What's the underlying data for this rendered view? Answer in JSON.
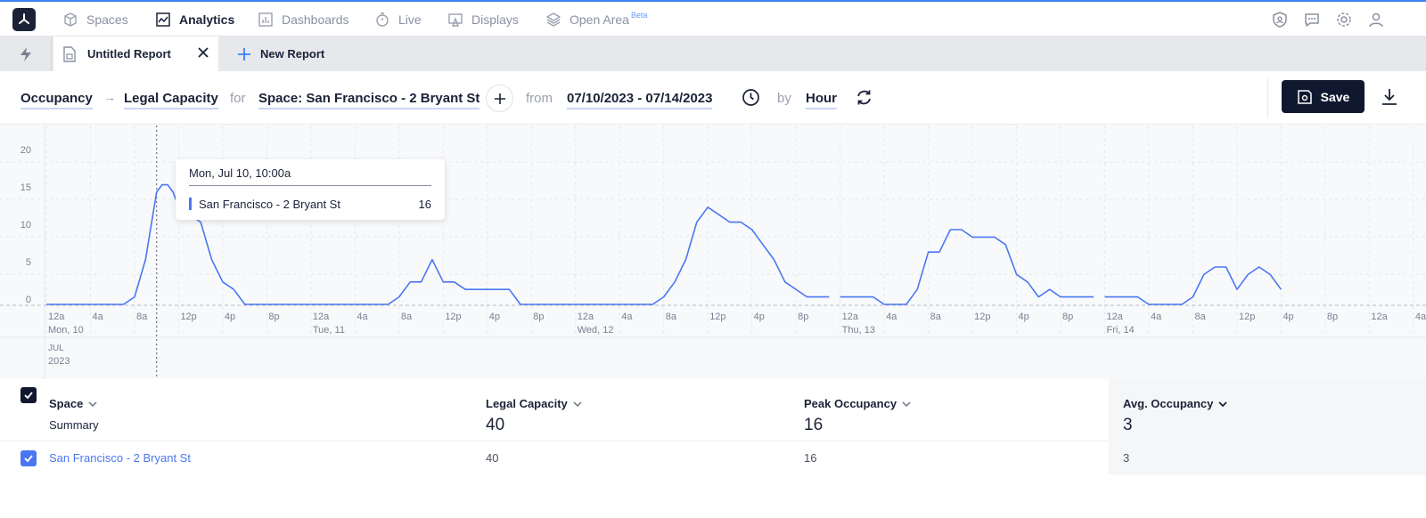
{
  "nav": {
    "items": [
      {
        "label": "Spaces",
        "icon": "cube-icon"
      },
      {
        "label": "Analytics",
        "icon": "chart-line-icon"
      },
      {
        "label": "Dashboards",
        "icon": "bar-chart-icon"
      },
      {
        "label": "Live",
        "icon": "stopwatch-icon"
      },
      {
        "label": "Displays",
        "icon": "display-icon"
      },
      {
        "label": "Open Area",
        "icon": "layers-icon"
      }
    ],
    "beta_label": "Beta",
    "active": "Analytics"
  },
  "tabs": {
    "current": "Untitled Report",
    "new_label": "New Report"
  },
  "query": {
    "metric": "Occupancy",
    "measure": "Legal Capacity",
    "for_label": "for",
    "space": "Space: San Francisco - 2 Bryant St",
    "from_label": "from",
    "date_range": "07/10/2023 - 07/14/2023",
    "by_label": "by",
    "interval": "Hour",
    "save_label": "Save"
  },
  "tooltip": {
    "title": "Mon, Jul 10, 10:00a",
    "series": "San Francisco - 2 Bryant St",
    "value": "16"
  },
  "chart_data": {
    "type": "line",
    "y_ticks": [
      "0",
      "5",
      "10",
      "15",
      "20"
    ],
    "ylim": [
      0,
      20
    ],
    "x_ticks": [
      "12a",
      "4a",
      "8a",
      "12p",
      "4p",
      "8p"
    ],
    "days": [
      "Mon, 10",
      "Tue, 11",
      "Wed, 12",
      "Thu, 13",
      "Fri, 14"
    ],
    "month_label": "JUL",
    "year_label": "2023",
    "grid": true,
    "series": [
      {
        "name": "San Francisco - 2 Bryant St",
        "color": "#4a77f0",
        "segments": [
          [
            [
              0,
              0
            ],
            [
              7,
              0
            ],
            [
              8,
              1
            ],
            [
              9,
              6
            ],
            [
              10,
              15
            ],
            [
              10.5,
              16
            ],
            [
              11,
              16
            ],
            [
              11.5,
              15
            ],
            [
              12,
              13
            ],
            [
              14,
              11
            ],
            [
              15,
              6
            ],
            [
              16,
              3
            ],
            [
              17,
              2
            ],
            [
              18,
              0
            ],
            [
              24,
              0
            ]
          ],
          [
            [
              24,
              0
            ],
            [
              31,
              0
            ],
            [
              32,
              1
            ],
            [
              33,
              3
            ],
            [
              34,
              3
            ],
            [
              35,
              6
            ],
            [
              36,
              3
            ],
            [
              37,
              3
            ],
            [
              38,
              2
            ],
            [
              41,
              2
            ],
            [
              42,
              2
            ],
            [
              43,
              0
            ],
            [
              48,
              0
            ]
          ],
          [
            [
              48,
              0
            ],
            [
              55,
              0
            ],
            [
              56,
              1
            ],
            [
              57,
              3
            ],
            [
              58,
              6
            ],
            [
              59,
              11
            ],
            [
              60,
              13
            ],
            [
              61,
              12
            ],
            [
              62,
              11
            ],
            [
              63,
              11
            ],
            [
              64,
              10
            ],
            [
              65,
              8
            ],
            [
              66,
              6
            ],
            [
              67,
              3
            ],
            [
              69,
              1
            ],
            [
              71,
              1
            ]
          ],
          [
            [
              72,
              1
            ],
            [
              75,
              1
            ],
            [
              76,
              0
            ],
            [
              78,
              0
            ],
            [
              79,
              2
            ],
            [
              80,
              7
            ],
            [
              81,
              7
            ],
            [
              82,
              10
            ],
            [
              83,
              10
            ],
            [
              84,
              9
            ],
            [
              86,
              9
            ],
            [
              87,
              8
            ],
            [
              88,
              4
            ],
            [
              89,
              3
            ],
            [
              90,
              1
            ],
            [
              91,
              2
            ],
            [
              92,
              1
            ],
            [
              95,
              1
            ]
          ],
          [
            [
              96,
              1
            ],
            [
              99,
              1
            ],
            [
              100,
              0
            ],
            [
              103,
              0
            ],
            [
              104,
              1
            ],
            [
              105,
              4
            ],
            [
              106,
              5
            ],
            [
              107,
              5
            ],
            [
              108,
              2
            ],
            [
              109,
              4
            ],
            [
              110,
              5
            ],
            [
              111,
              4
            ],
            [
              112,
              2
            ]
          ]
        ]
      }
    ],
    "highlight_x": 10
  },
  "table": {
    "columns": {
      "space": "Space",
      "legal_capacity": "Legal Capacity",
      "peak_occupancy": "Peak Occupancy",
      "avg_occupancy": "Avg. Occupancy"
    },
    "summary": {
      "label": "Summary",
      "legal_capacity": "40",
      "peak_occupancy": "16",
      "avg_occupancy": "3"
    },
    "rows": [
      {
        "space": "San Francisco - 2 Bryant St",
        "legal_capacity": "40",
        "peak_occupancy": "16",
        "avg_occupancy": "3"
      }
    ]
  }
}
